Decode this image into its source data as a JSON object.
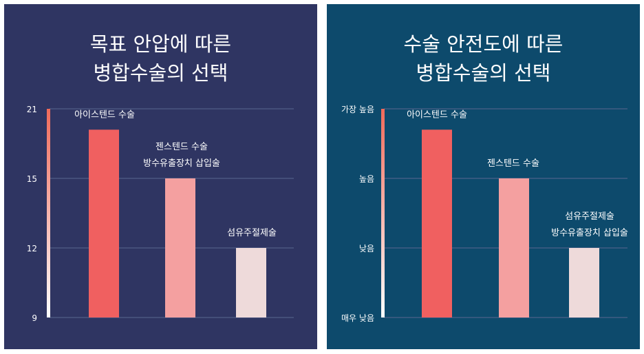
{
  "colors": {
    "panel_left_bg": "#2f3562",
    "panel_right_bg": "#0d4a6c",
    "bar_1": "#f06060",
    "bar_2": "#f4a0a0",
    "bar_3": "#eedada",
    "gridline": "#5a6690",
    "axis_gradient_top": "#f06a5a",
    "axis_gradient_bottom": "#ffffff"
  },
  "chart_data": [
    {
      "type": "bar",
      "title_lines": [
        "목표 안압에 따른",
        "병합수술의 선택"
      ],
      "yticks": [
        {
          "value": 9,
          "label": "9"
        },
        {
          "value": 12,
          "label": "12"
        },
        {
          "value": 15,
          "label": "15"
        },
        {
          "value": 21,
          "label": "21"
        }
      ],
      "ylim": [
        9,
        21
      ],
      "tick_positions": [
        0,
        1,
        2,
        3
      ],
      "bars": [
        {
          "level": 2.7,
          "label_lines": [
            "아이스텐드 수술"
          ]
        },
        {
          "level": 2.0,
          "label_lines": [
            "젠스텐드 수술",
            "방수유출장치 삽입술"
          ]
        },
        {
          "level": 1.0,
          "label_lines": [
            "섬유주절제술"
          ]
        }
      ],
      "grid": true
    },
    {
      "type": "bar",
      "title_lines": [
        "수술 안전도에 따른",
        "병합수술의 선택"
      ],
      "yticks": [
        {
          "value": 0,
          "label": "매우 낮음"
        },
        {
          "value": 1,
          "label": "낮음"
        },
        {
          "value": 2,
          "label": "높음"
        },
        {
          "value": 3,
          "label": "가장 높음"
        }
      ],
      "ylim": [
        0,
        3
      ],
      "tick_positions": [
        0,
        1,
        2,
        3
      ],
      "bars": [
        {
          "level": 2.7,
          "label_lines": [
            "아이스텐드 수술"
          ]
        },
        {
          "level": 2.0,
          "label_lines": [
            "젠스텐드 수술"
          ]
        },
        {
          "level": 1.0,
          "label_lines": [
            "섬유주절제술",
            "방수유출장치 삽입술"
          ]
        }
      ],
      "grid": true
    }
  ]
}
